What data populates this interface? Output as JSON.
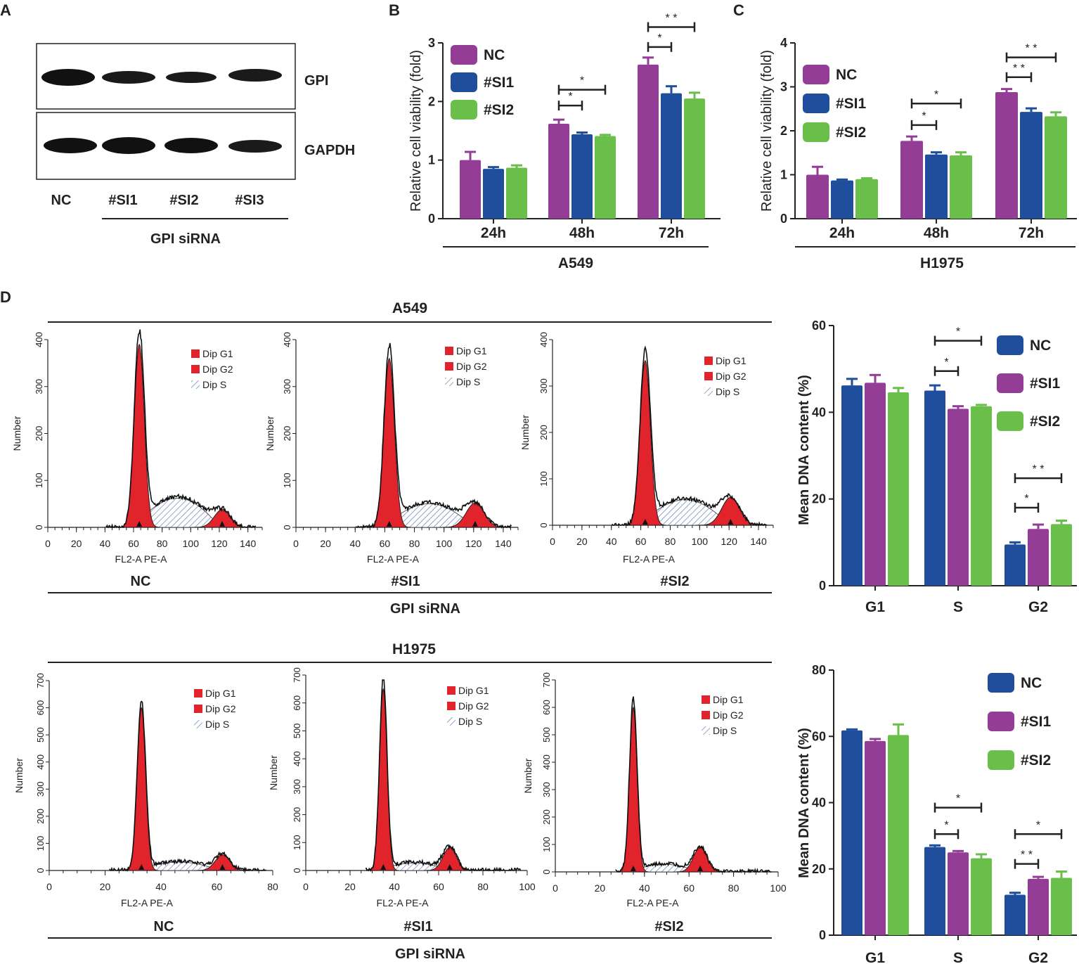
{
  "colors": {
    "nc_purple": "#943d97",
    "si1_blue": "#1e4e9c",
    "si2_green": "#6abf4b",
    "peak_red": "#e1232b",
    "hatch_blue": "#5a78b4",
    "ink": "#222222"
  },
  "panels": {
    "A": {
      "letter": "A",
      "band_labels": [
        "GPI",
        "GAPDH"
      ],
      "lanes": [
        "NC",
        "#SI1",
        "#SI2",
        "#SI3"
      ],
      "group_label": "GPI siRNA"
    },
    "B": {
      "letter": "B",
      "cell_line": "A549"
    },
    "C": {
      "letter": "C",
      "cell_line": "H1975"
    },
    "D": {
      "letter": "D",
      "row1_title": "A549",
      "row2_title": "H1975",
      "sample_labels": [
        "NC",
        "#SI1",
        "#SI2"
      ],
      "group_label": "GPI siRNA",
      "hist_xlabel": "FL2-A PE-A",
      "hist_ylabel": "Number",
      "hist_legend": [
        "Dip G1",
        "Dip G2",
        "Dip S"
      ]
    }
  },
  "chart_data": [
    {
      "id": "B",
      "type": "bar",
      "title": "",
      "xlabel": "A549",
      "ylabel": "Relative cell viability (fold)",
      "categories": [
        "24h",
        "48h",
        "72h"
      ],
      "ylim": [
        0,
        3
      ],
      "yticks": [
        0,
        1,
        2,
        3
      ],
      "series": [
        {
          "name": "NC",
          "color": "#943d97",
          "values": [
            1.0,
            1.62,
            2.63
          ],
          "errors": [
            0.14,
            0.07,
            0.12
          ]
        },
        {
          "name": "#SI1",
          "color": "#1e4e9c",
          "values": [
            0.85,
            1.44,
            2.14
          ],
          "errors": [
            0.03,
            0.03,
            0.12
          ]
        },
        {
          "name": "#SI2",
          "color": "#6abf4b",
          "values": [
            0.87,
            1.41,
            2.05
          ],
          "errors": [
            0.04,
            0.02,
            0.1
          ]
        }
      ],
      "significance": [
        {
          "category": 1,
          "from": 0,
          "to": 1,
          "label": "*",
          "y": 1.93
        },
        {
          "category": 1,
          "from": 0,
          "to": 2,
          "label": "*",
          "y": 2.2
        },
        {
          "category": 2,
          "from": 0,
          "to": 1,
          "label": "*",
          "y": 2.93
        },
        {
          "category": 2,
          "from": 0,
          "to": 2,
          "label": "* *",
          "y": 3.27
        }
      ]
    },
    {
      "id": "C",
      "type": "bar",
      "title": "",
      "xlabel": "H1975",
      "ylabel": "Relative cell viability (fold)",
      "categories": [
        "24h",
        "48h",
        "72h"
      ],
      "ylim": [
        0,
        4
      ],
      "yticks": [
        0,
        1,
        2,
        3,
        4
      ],
      "series": [
        {
          "name": "NC",
          "color": "#943d97",
          "values": [
            1.0,
            1.77,
            2.88
          ],
          "errors": [
            0.18,
            0.1,
            0.07
          ]
        },
        {
          "name": "#SI1",
          "color": "#1e4e9c",
          "values": [
            0.87,
            1.46,
            2.43
          ],
          "errors": [
            0.02,
            0.05,
            0.08
          ]
        },
        {
          "name": "#SI2",
          "color": "#6abf4b",
          "values": [
            0.9,
            1.44,
            2.33
          ],
          "errors": [
            0.02,
            0.07,
            0.09
          ]
        }
      ],
      "significance": [
        {
          "category": 1,
          "from": 0,
          "to": 1,
          "label": "*",
          "y": 2.13
        },
        {
          "category": 1,
          "from": 0,
          "to": 2,
          "label": "*",
          "y": 2.62
        },
        {
          "category": 2,
          "from": 0,
          "to": 1,
          "label": "* *",
          "y": 3.22
        },
        {
          "category": 2,
          "from": 0,
          "to": 2,
          "label": "* *",
          "y": 3.67
        }
      ]
    },
    {
      "id": "D1",
      "type": "bar",
      "title": "",
      "xlabel": "",
      "ylabel": "Mean DNA content (%)",
      "categories": [
        "G1",
        "S",
        "G2"
      ],
      "ylim": [
        0,
        60
      ],
      "yticks": [
        0,
        20,
        40,
        60
      ],
      "series": [
        {
          "name": "NC",
          "color": "#1e4e9c",
          "values": [
            46.2,
            45.0,
            9.5
          ],
          "errors": [
            1.5,
            1.2,
            0.5
          ]
        },
        {
          "name": "#SI1",
          "color": "#943d97",
          "values": [
            46.8,
            40.8,
            13.1
          ],
          "errors": [
            1.8,
            0.6,
            1.0
          ]
        },
        {
          "name": "#SI2",
          "color": "#6abf4b",
          "values": [
            44.6,
            41.4,
            14.2
          ],
          "errors": [
            1.0,
            0.3,
            0.8
          ]
        }
      ],
      "significance": [
        {
          "category": 1,
          "from": 0,
          "to": 1,
          "label": "*",
          "y": 49.5
        },
        {
          "category": 1,
          "from": 0,
          "to": 2,
          "label": "*",
          "y": 56.5
        },
        {
          "category": 2,
          "from": 0,
          "to": 1,
          "label": "*",
          "y": 18.0
        },
        {
          "category": 2,
          "from": 0,
          "to": 2,
          "label": "* *",
          "y": 24.8
        }
      ]
    },
    {
      "id": "D2",
      "type": "bar",
      "title": "",
      "xlabel": "",
      "ylabel": "Mean DNA content (%)",
      "categories": [
        "G1",
        "S",
        "G2"
      ],
      "ylim": [
        0,
        80
      ],
      "yticks": [
        0,
        20,
        40,
        60,
        80
      ],
      "series": [
        {
          "name": "NC",
          "color": "#1e4e9c",
          "values": [
            61.8,
            26.6,
            12.2
          ],
          "errors": [
            0.3,
            0.5,
            0.6
          ]
        },
        {
          "name": "#SI1",
          "color": "#943d97",
          "values": [
            58.6,
            25.0,
            17.0
          ],
          "errors": [
            0.6,
            0.4,
            0.6
          ]
        },
        {
          "name": "#SI2",
          "color": "#6abf4b",
          "values": [
            60.4,
            23.2,
            17.3
          ],
          "errors": [
            3.2,
            1.2,
            1.9
          ]
        }
      ],
      "significance": [
        {
          "category": 1,
          "from": 0,
          "to": 1,
          "label": "*",
          "y": 30.5
        },
        {
          "category": 1,
          "from": 0,
          "to": 2,
          "label": "*",
          "y": 38.5
        },
        {
          "category": 2,
          "from": 0,
          "to": 1,
          "label": "* *",
          "y": 21.5
        },
        {
          "category": 2,
          "from": 0,
          "to": 2,
          "label": "*",
          "y": 30.5
        }
      ]
    },
    {
      "id": "H-A549-NC",
      "type": "area",
      "xlabel": "FL2-A PE-A",
      "ylabel": "Number",
      "xlim": [
        0,
        150
      ],
      "xticks": [
        0,
        20,
        40,
        60,
        80,
        100,
        120,
        140
      ],
      "ylim": [
        0,
        400
      ],
      "yticks": [
        0,
        100,
        200,
        300,
        400
      ],
      "peaks": {
        "g1_pos": 64,
        "g1_height": 390,
        "g1_sd": 3.5,
        "g2_pos": 122,
        "g2_height": 38,
        "g2_sd": 5.5,
        "s_level": 68
      },
      "legend": [
        "Dip G1",
        "Dip G2",
        "Dip S"
      ],
      "label": "NC"
    },
    {
      "id": "H-A549-SI1",
      "type": "area",
      "xlabel": "FL2-A PE-A",
      "ylabel": "Number",
      "xlim": [
        0,
        150
      ],
      "xticks": [
        0,
        20,
        40,
        60,
        80,
        100,
        120,
        140
      ],
      "ylim": [
        0,
        400
      ],
      "yticks": [
        0,
        100,
        200,
        300,
        400
      ],
      "peaks": {
        "g1_pos": 63,
        "g1_height": 360,
        "g1_sd": 3.5,
        "g2_pos": 121,
        "g2_height": 52,
        "g2_sd": 6.0,
        "s_level": 55
      },
      "legend": [
        "Dip G1",
        "Dip G2",
        "Dip S"
      ],
      "label": "#SI1"
    },
    {
      "id": "H-A549-SI2",
      "type": "area",
      "xlabel": "FL2-A PE-A",
      "ylabel": "Number",
      "xlim": [
        0,
        150
      ],
      "xticks": [
        0,
        20,
        40,
        60,
        80,
        100,
        120,
        140
      ],
      "ylim": [
        0,
        400
      ],
      "yticks": [
        0,
        100,
        200,
        300,
        400
      ],
      "peaks": {
        "g1_pos": 63,
        "g1_height": 355,
        "g1_sd": 3.5,
        "g2_pos": 121,
        "g2_height": 60,
        "g2_sd": 6.0,
        "s_level": 60
      },
      "legend": [
        "Dip G1",
        "Dip G2",
        "Dip S"
      ],
      "label": "#SI2"
    },
    {
      "id": "H-H1975-NC",
      "type": "area",
      "xlabel": "FL2-A PE-A",
      "ylabel": "Number",
      "xlim": [
        0,
        80
      ],
      "xticks": [
        0,
        20,
        40,
        60,
        80
      ],
      "ylim": [
        0,
        700
      ],
      "yticks": [
        0,
        100,
        200,
        300,
        400,
        500,
        600,
        700
      ],
      "peaks": {
        "g1_pos": 33,
        "g1_height": 600,
        "g1_sd": 1.5,
        "g2_pos": 62,
        "g2_height": 58,
        "g2_sd": 2.6,
        "s_level": 34
      },
      "legend": [
        "Dip G1",
        "Dip G2",
        "Dip S"
      ],
      "label": "NC"
    },
    {
      "id": "H-H1975-SI1",
      "type": "area",
      "xlabel": "FL2-A PE-A",
      "ylabel": "Number",
      "xlim": [
        0,
        100
      ],
      "xticks": [
        0,
        20,
        40,
        60,
        80,
        100
      ],
      "ylim": [
        0,
        700
      ],
      "yticks": [
        0,
        100,
        200,
        300,
        400,
        500,
        600,
        700
      ],
      "peaks": {
        "g1_pos": 35,
        "g1_height": 650,
        "g1_sd": 1.7,
        "g2_pos": 65,
        "g2_height": 82,
        "g2_sd": 3.0,
        "s_level": 30
      },
      "legend": [
        "Dip G1",
        "Dip G2",
        "Dip S"
      ],
      "label": "#SI1"
    },
    {
      "id": "H-H1975-SI2",
      "type": "area",
      "xlabel": "FL2-A PE-A",
      "ylabel": "Number",
      "xlim": [
        0,
        100
      ],
      "xticks": [
        0,
        20,
        40,
        60,
        80,
        100
      ],
      "ylim": [
        0,
        700
      ],
      "yticks": [
        0,
        100,
        200,
        300,
        400,
        500,
        600,
        700
      ],
      "peaks": {
        "g1_pos": 35,
        "g1_height": 600,
        "g1_sd": 1.7,
        "g2_pos": 65,
        "g2_height": 90,
        "g2_sd": 3.0,
        "s_level": 30
      },
      "legend": [
        "Dip G1",
        "Dip G2",
        "Dip S"
      ],
      "label": "#SI2"
    }
  ]
}
